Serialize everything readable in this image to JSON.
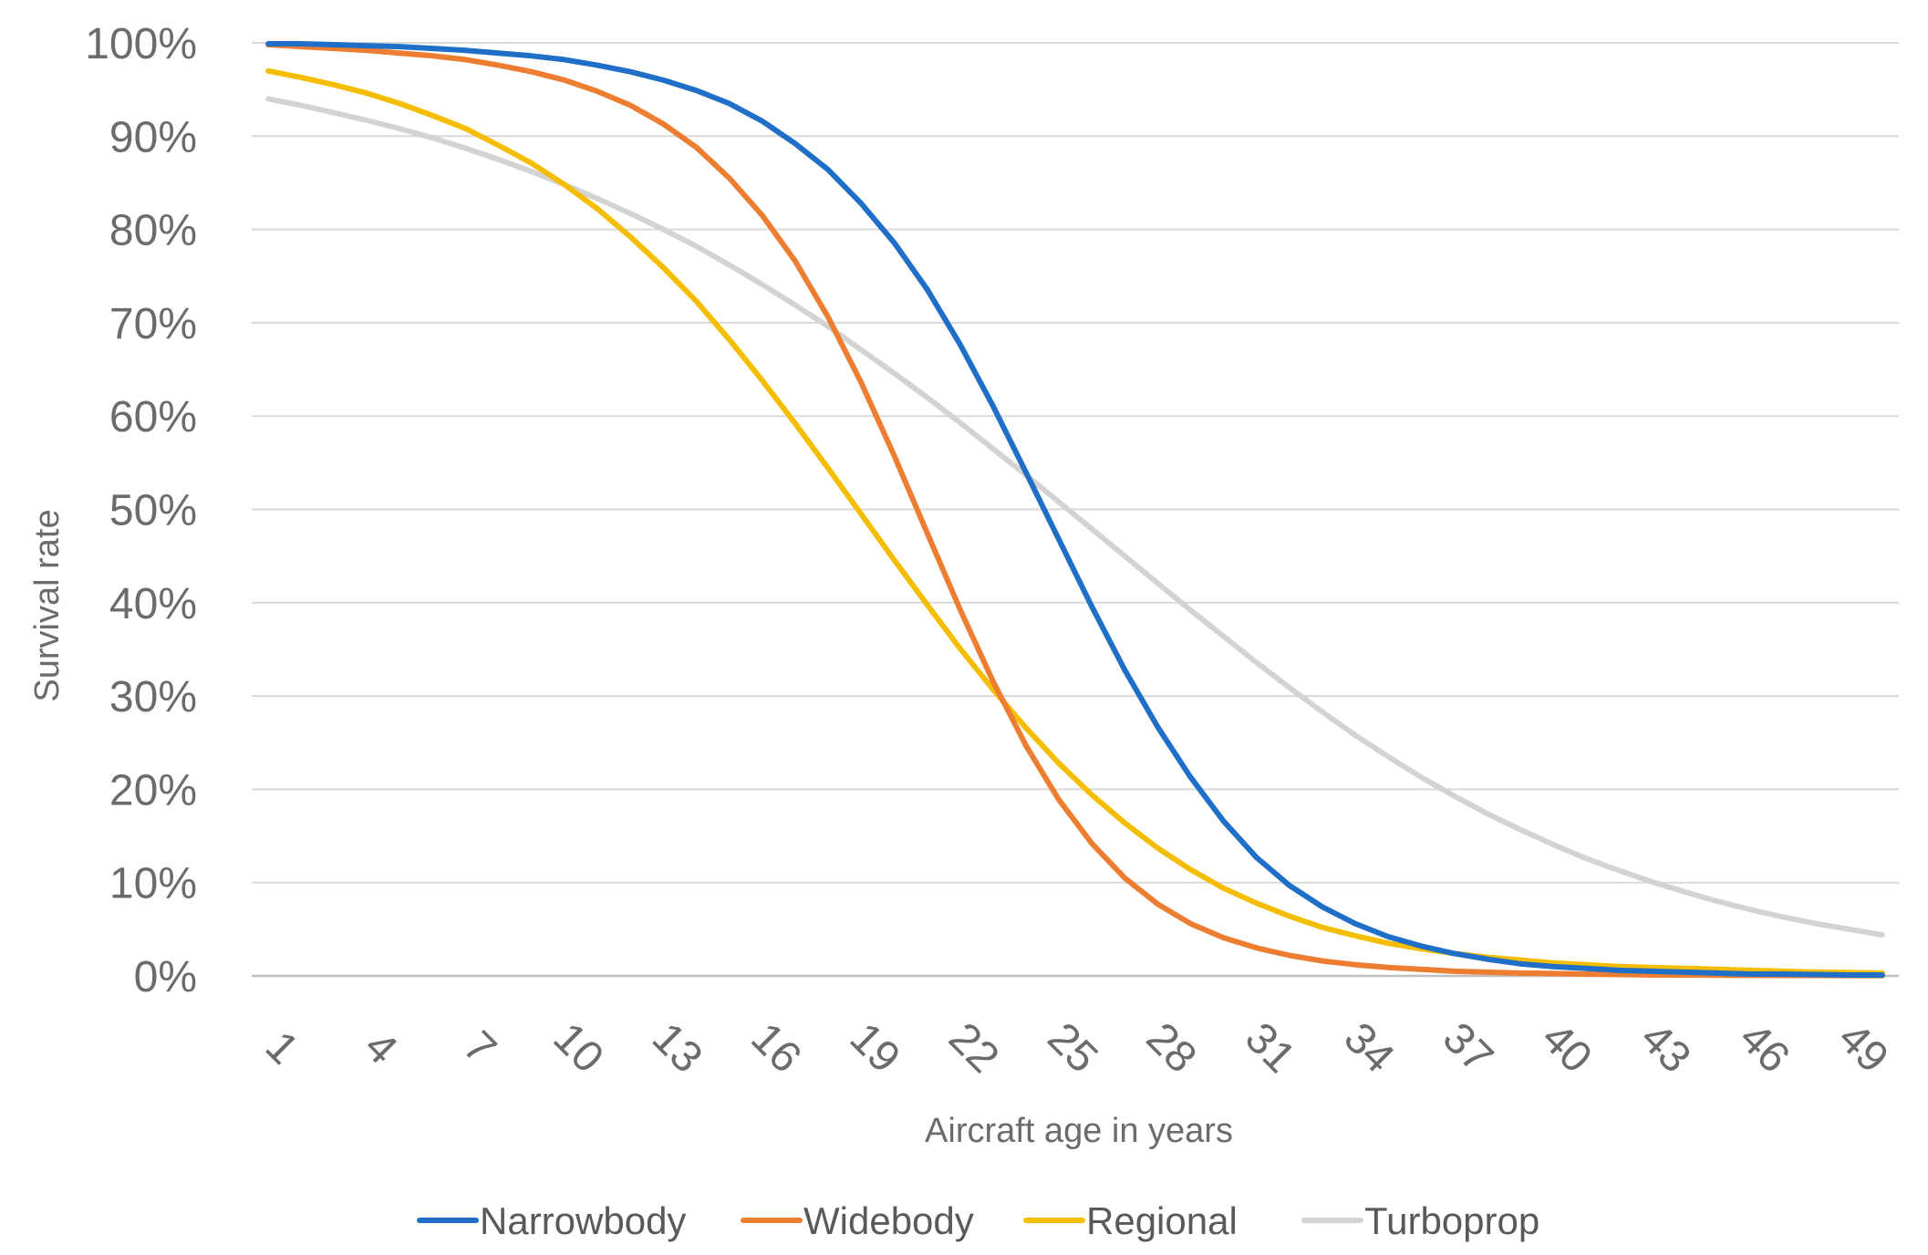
{
  "chart_data": {
    "type": "line",
    "title": "",
    "xlabel": "Aircraft age in years",
    "ylabel": "Survival rate",
    "x": [
      1,
      2,
      3,
      4,
      5,
      6,
      7,
      8,
      9,
      10,
      11,
      12,
      13,
      14,
      15,
      16,
      17,
      18,
      19,
      20,
      21,
      22,
      23,
      24,
      25,
      26,
      27,
      28,
      29,
      30,
      31,
      32,
      33,
      34,
      35,
      36,
      37,
      38,
      39,
      40,
      41,
      42,
      43,
      44,
      45,
      46,
      47,
      48,
      49,
      50
    ],
    "x_tick_labels": [
      "1",
      "4",
      "7",
      "10",
      "13",
      "16",
      "19",
      "22",
      "25",
      "28",
      "31",
      "34",
      "37",
      "40",
      "43",
      "46",
      "49"
    ],
    "y_tick_labels": [
      "0%",
      "10%",
      "20%",
      "30%",
      "40%",
      "50%",
      "60%",
      "70%",
      "80%",
      "90%",
      "100%"
    ],
    "ylim": [
      0,
      100
    ],
    "grid": "horizontal",
    "legend_position": "bottom",
    "series": [
      {
        "name": "Narrowbody",
        "color": "#1f6fc8",
        "values": [
          99.9,
          99.9,
          99.8,
          99.7,
          99.6,
          99.4,
          99.2,
          98.9,
          98.6,
          98.2,
          97.6,
          96.9,
          96.0,
          94.9,
          93.5,
          91.6,
          89.2,
          86.4,
          82.8,
          78.6,
          73.6,
          67.7,
          61.1,
          54.0,
          46.8,
          39.6,
          32.8,
          26.7,
          21.3,
          16.6,
          12.7,
          9.7,
          7.4,
          5.6,
          4.2,
          3.2,
          2.4,
          1.8,
          1.3,
          1.0,
          0.8,
          0.6,
          0.5,
          0.4,
          0.3,
          0.2,
          0.2,
          0.15,
          0.1,
          0.1
        ]
      },
      {
        "name": "Widebody",
        "color": "#ed7d31",
        "values": [
          99.8,
          99.6,
          99.4,
          99.2,
          98.9,
          98.6,
          98.2,
          97.6,
          96.9,
          96.0,
          94.8,
          93.3,
          91.3,
          88.8,
          85.5,
          81.5,
          76.6,
          70.6,
          63.6,
          55.8,
          47.5,
          39.3,
          31.6,
          24.7,
          18.9,
          14.2,
          10.5,
          7.7,
          5.6,
          4.1,
          3.0,
          2.2,
          1.6,
          1.2,
          0.9,
          0.7,
          0.5,
          0.4,
          0.3,
          0.25,
          0.2,
          0.15,
          0.1,
          0.1,
          0.08,
          0.06,
          0.05,
          0.05,
          0.04,
          0.03
        ]
      },
      {
        "name": "Regional",
        "color": "#f5bd00",
        "values": [
          97.0,
          96.3,
          95.5,
          94.6,
          93.5,
          92.2,
          90.8,
          89.0,
          87.1,
          84.8,
          82.2,
          79.2,
          75.9,
          72.3,
          68.2,
          63.8,
          59.2,
          54.4,
          49.5,
          44.6,
          39.8,
          35.1,
          30.7,
          26.6,
          22.8,
          19.4,
          16.4,
          13.7,
          11.4,
          9.4,
          7.8,
          6.4,
          5.2,
          4.3,
          3.5,
          2.9,
          2.4,
          2.0,
          1.7,
          1.4,
          1.2,
          1.0,
          0.9,
          0.8,
          0.7,
          0.6,
          0.5,
          0.4,
          0.35,
          0.3
        ]
      },
      {
        "name": "Turboprop",
        "color": "#d3d3d3",
        "values": [
          94.0,
          93.3,
          92.5,
          91.7,
          90.8,
          89.8,
          88.7,
          87.5,
          86.2,
          84.8,
          83.3,
          81.7,
          80.0,
          78.2,
          76.2,
          74.1,
          71.9,
          69.6,
          67.1,
          64.6,
          62.0,
          59.3,
          56.5,
          53.7,
          50.8,
          47.9,
          45.0,
          42.1,
          39.2,
          36.4,
          33.6,
          30.9,
          28.3,
          25.8,
          23.5,
          21.3,
          19.3,
          17.4,
          15.7,
          14.1,
          12.6,
          11.3,
          10.1,
          9.0,
          8.0,
          7.1,
          6.3,
          5.6,
          5.0,
          4.4
        ]
      }
    ]
  }
}
